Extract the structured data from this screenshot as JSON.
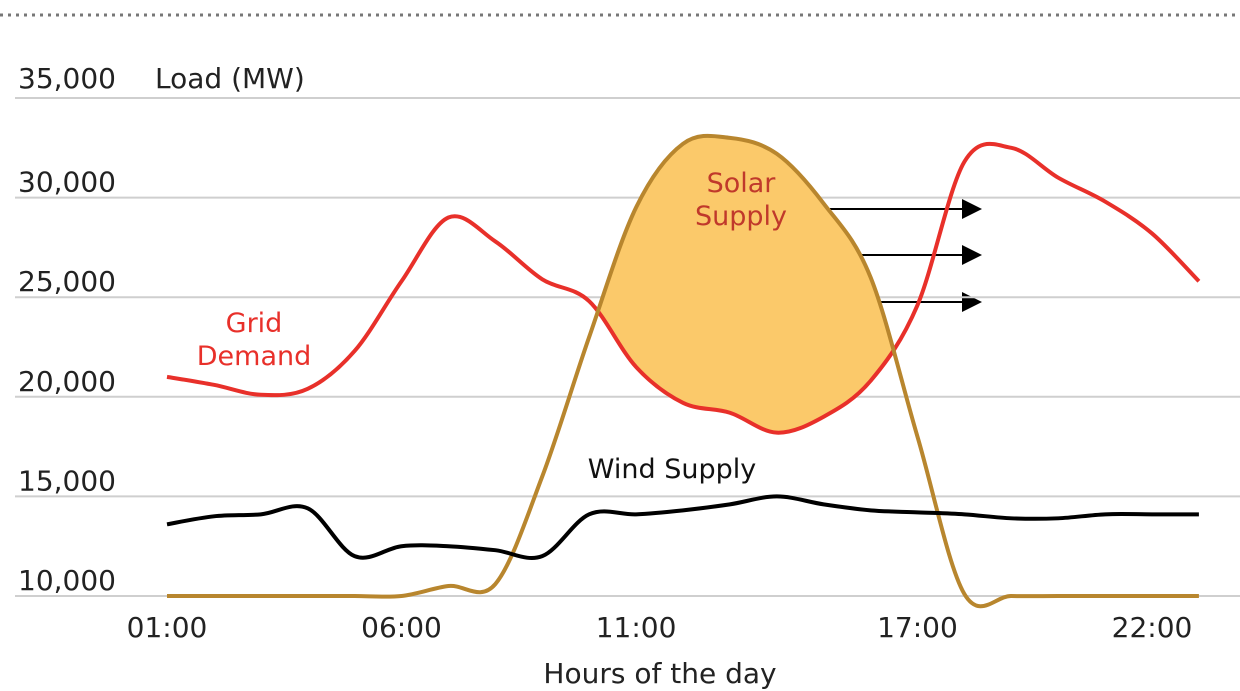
{
  "chart_data": {
    "type": "line",
    "y_axis_label": "Load (MW)",
    "x_axis_label": "Hours of the day",
    "x": [
      1,
      2,
      3,
      4,
      5,
      6,
      7,
      8,
      9,
      10,
      11,
      12,
      13,
      14,
      15,
      16,
      17,
      18,
      19,
      20,
      21,
      22,
      23
    ],
    "xlim": [
      0.5,
      23.8
    ],
    "xticks": [
      {
        "value": 1,
        "label": "01:00"
      },
      {
        "value": 6,
        "label": "06:00"
      },
      {
        "value": 11,
        "label": "11:00"
      },
      {
        "value": 17,
        "label": "17:00"
      },
      {
        "value": 22,
        "label": "22:00"
      }
    ],
    "ylim": [
      10000,
      35000
    ],
    "yticks": [
      {
        "value": 10000,
        "label": "10,000"
      },
      {
        "value": 15000,
        "label": "15,000"
      },
      {
        "value": 20000,
        "label": "20,000"
      },
      {
        "value": 25000,
        "label": "25,000"
      },
      {
        "value": 30000,
        "label": "30,000"
      },
      {
        "value": 35000,
        "label": "35,000"
      }
    ],
    "grid": true,
    "series": [
      {
        "name": "Grid Demand",
        "color": "#e8302a",
        "values": [
          21000,
          20600,
          20100,
          20400,
          22300,
          25800,
          29000,
          27800,
          25900,
          24800,
          21500,
          19700,
          19200,
          18200,
          19000,
          20800,
          24600,
          31800,
          32500,
          31000,
          29800,
          28200,
          25800
        ]
      },
      {
        "name": "Solar Supply",
        "color": "#b8862e",
        "fill": "#fbc96a",
        "values": [
          10000,
          10000,
          10000,
          10000,
          10000,
          10000,
          10500,
          10600,
          16000,
          23000,
          29500,
          32700,
          33000,
          32200,
          29700,
          26000,
          18000,
          10100,
          10000,
          10000,
          10000,
          10000,
          10000
        ]
      },
      {
        "name": "Wind Supply",
        "color": "#000000",
        "values": [
          13600,
          14000,
          14100,
          14400,
          12000,
          12500,
          12500,
          12300,
          12000,
          14100,
          14100,
          14300,
          14600,
          15000,
          14600,
          14300,
          14200,
          14100,
          13900,
          13900,
          14100,
          14100,
          14100
        ]
      }
    ],
    "annotations": [
      {
        "lines": [
          "Grid",
          "Demand"
        ],
        "color": "#e8302a"
      },
      {
        "lines": [
          "Solar",
          "Supply"
        ],
        "color": "#c0392b"
      },
      {
        "lines": [
          "Wind Supply"
        ],
        "color": "#111111"
      }
    ]
  }
}
